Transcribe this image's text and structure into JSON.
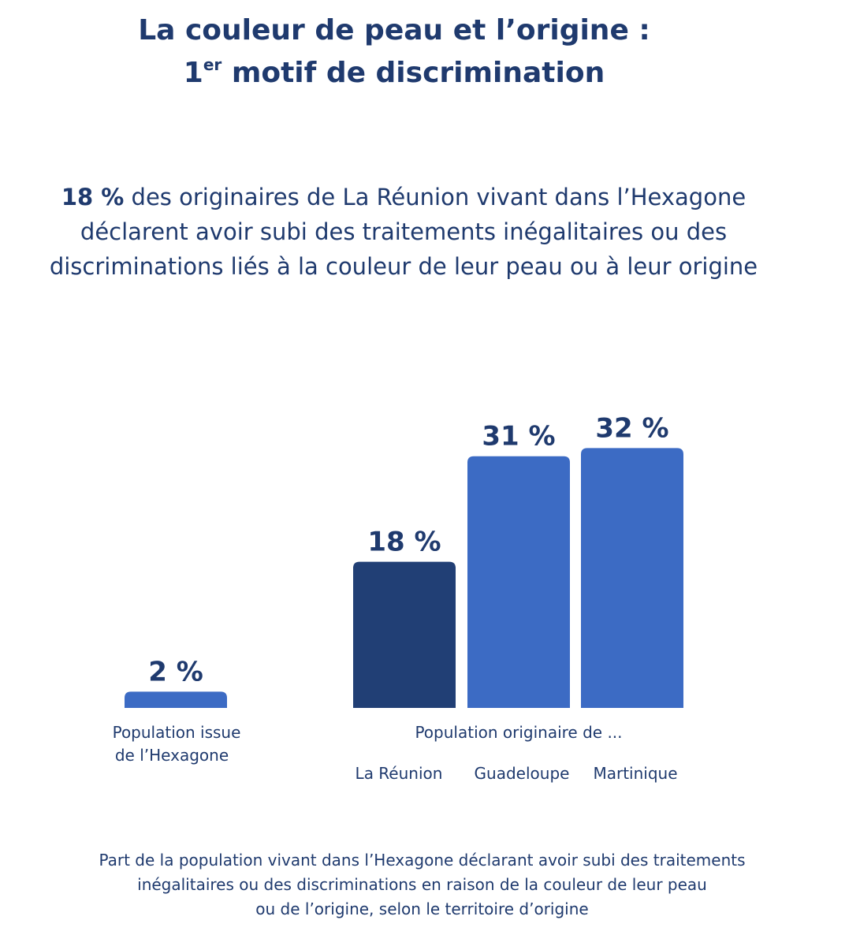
{
  "header": {
    "title_line1": "La couleur de peau et l’origine :",
    "title_line2_prefix": "1",
    "title_line2_sup": "er",
    "title_line2_rest": " motif de discrimination"
  },
  "summary": {
    "highlight": "18 %",
    "text_line1": " des originaires de La Réunion vivant dans l’Hexagone",
    "text_line2": "déclarent avoir subi des traitements inégalitaires ou des",
    "text_line3": "discriminations  liés à la couleur de leur peau ou à leur origine"
  },
  "chart_data": {
    "type": "bar",
    "categories": [
      "Population issue de l’Hexagone",
      "La Réunion",
      "Guadeloupe",
      "Martinique"
    ],
    "values": [
      2,
      18,
      31,
      32
    ],
    "value_labels": [
      "2 %",
      "18 %",
      "31 %",
      "32 %"
    ],
    "unit": "%",
    "group_label": "Population originaire de ...",
    "hexagone_label_lines": [
      "Population issue",
      "de l’Hexagone"
    ],
    "origin_labels": [
      "La Réunion",
      "Guadeloupe",
      "Martinique"
    ],
    "highlight_category": "La Réunion",
    "colors": {
      "default": "#3c6bc4",
      "highlight": "#213f75"
    },
    "title": "",
    "xlabel": "",
    "ylabel": "",
    "ylim": [
      0,
      35
    ],
    "grid": false
  },
  "caption": {
    "line1": "Part de la population vivant dans l’Hexagone déclarant avoir subi des traitements",
    "line2": "inégalitaires ou des discriminations en raison de la couleur de leur peau",
    "line3": "ou de l’origine, selon le territoire d’origine"
  }
}
